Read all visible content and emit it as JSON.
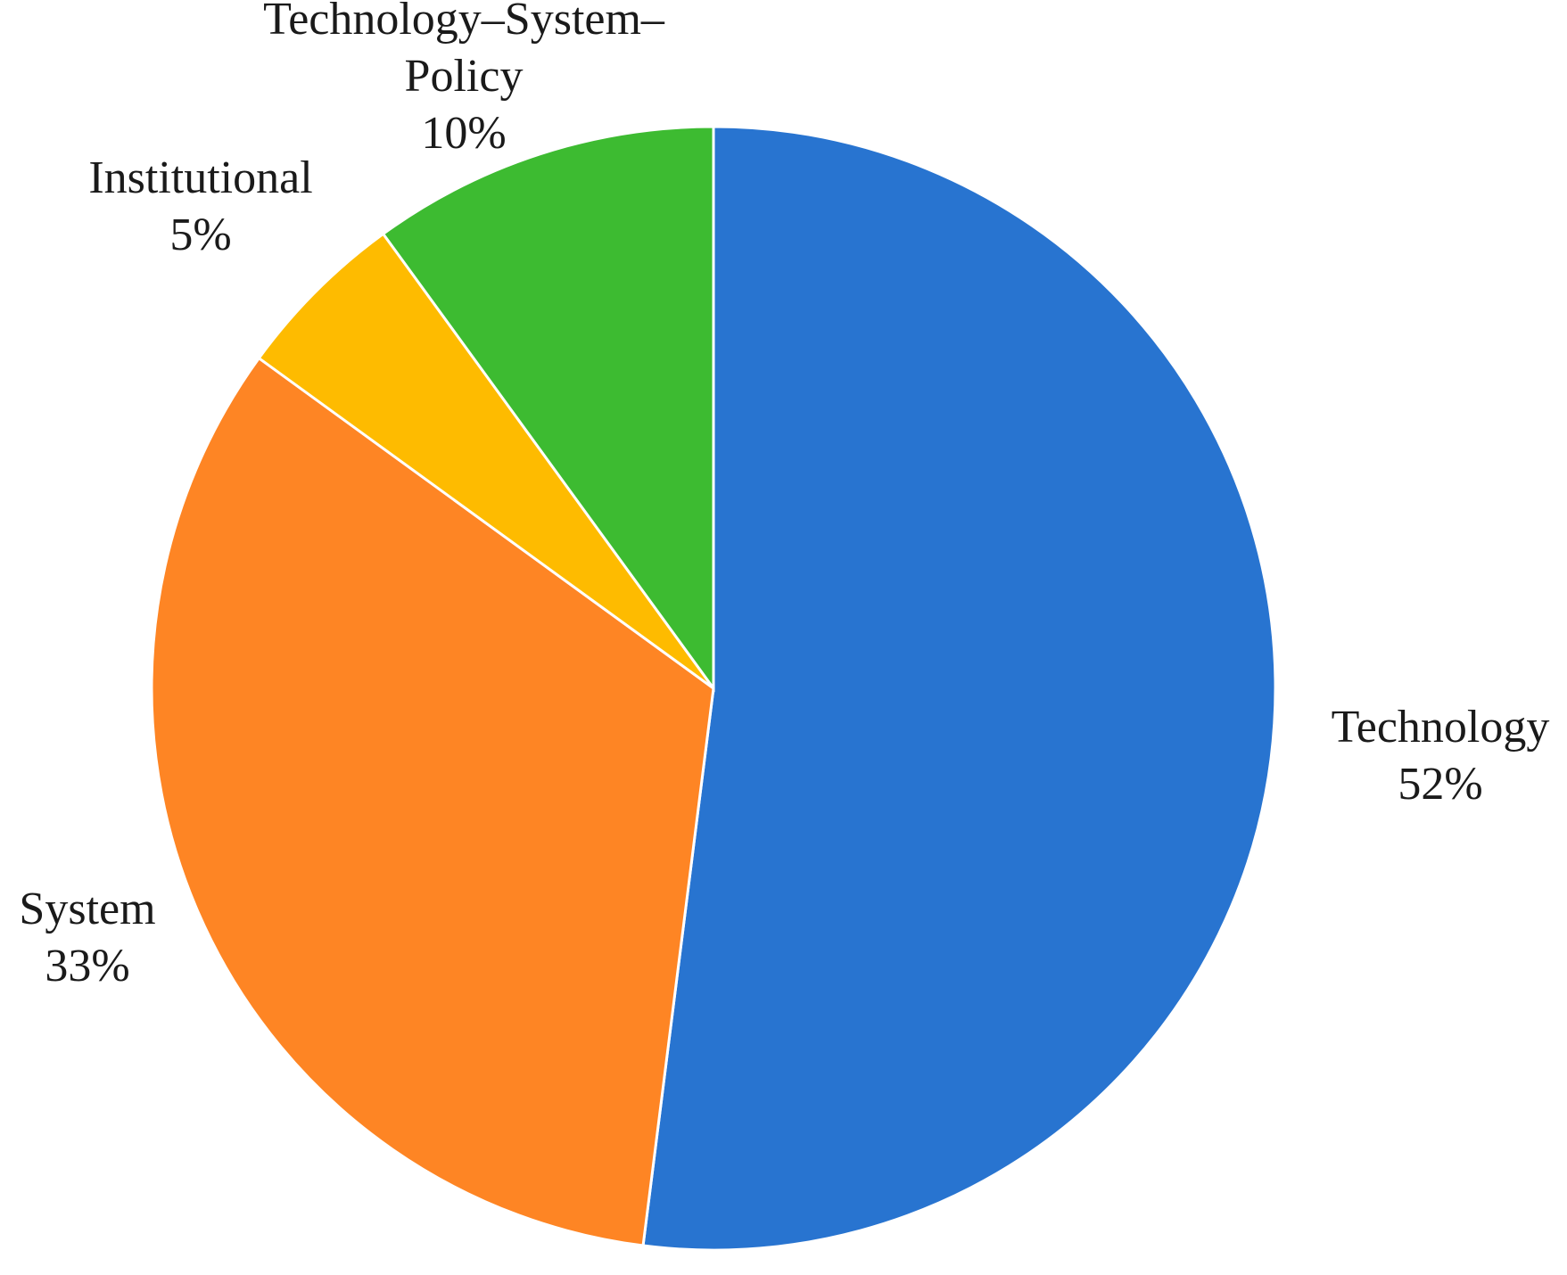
{
  "chart_data": {
    "type": "pie",
    "title": "",
    "start_angle_deg": 0,
    "direction": "clockwise",
    "slices": [
      {
        "name": "Technology",
        "value": 52,
        "value_label": "52%",
        "label_lines": [
          "Technology"
        ],
        "color": "#2874d0"
      },
      {
        "name": "System",
        "value": 33,
        "value_label": "33%",
        "label_lines": [
          "System"
        ],
        "color": "#fe8524"
      },
      {
        "name": "Institutional",
        "value": 5,
        "value_label": "5%",
        "label_lines": [
          "Institutional"
        ],
        "color": "#febb00"
      },
      {
        "name": "Technology–System–Policy",
        "value": 10,
        "value_label": "10%",
        "label_lines": [
          "Technology–System–",
          "Policy"
        ],
        "color": "#3dbb31"
      }
    ]
  }
}
